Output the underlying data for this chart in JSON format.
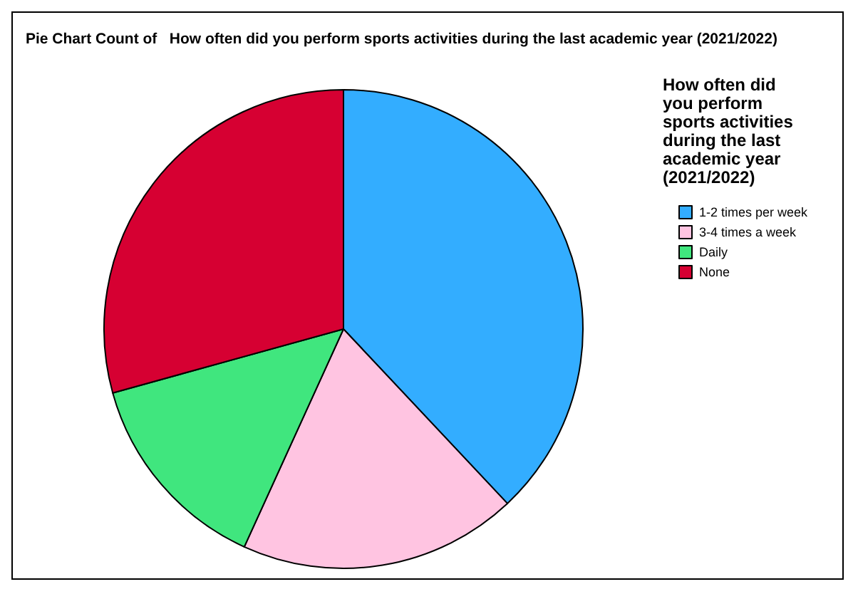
{
  "chart_data": {
    "type": "pie",
    "title": "Pie Chart Count of   How often did you perform sports activities during the last academic year (2021/2022)",
    "legend_title": "How often did you perform sports activities during the last academic year (2021/2022)",
    "categories": [
      "1-2 times per week",
      "3-4 times a week",
      "Daily",
      "None"
    ],
    "values": [
      38.0,
      18.8,
      13.9,
      29.3
    ],
    "colors": [
      "#33adff",
      "#ffc4e1",
      "#40e67e",
      "#d60032"
    ],
    "legend": "right"
  }
}
